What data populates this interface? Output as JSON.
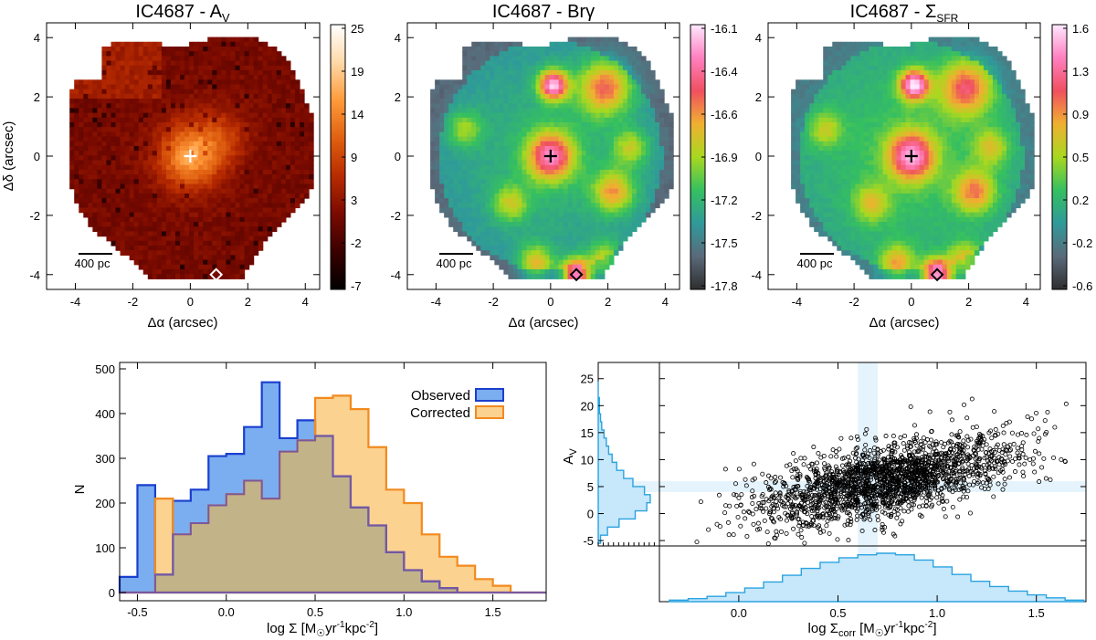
{
  "chart_data": [
    {
      "type": "heatmap",
      "title": "IC4687 - A",
      "title_sub": "V",
      "xlabel": "Δα (arcsec)",
      "ylabel": "Δδ (arcsec)",
      "xlim": [
        -5,
        4.5
      ],
      "ylim": [
        -4.5,
        4.5
      ],
      "xticks": [
        "-4",
        "-2",
        "0",
        "2",
        "4"
      ],
      "yticks": [
        "4",
        "2",
        "0",
        "-2",
        "-4"
      ],
      "colorbar_ticks": [
        "25",
        "19",
        "14",
        "9",
        "3",
        "-2",
        "-7"
      ],
      "scale_label": "400 pc",
      "colormap": [
        "#000000",
        "#3a0000",
        "#7a0a00",
        "#b82b00",
        "#e06010",
        "#ff9a3a",
        "#ffd9a8",
        "#ffffff"
      ],
      "markers": [
        {
          "kind": "cross",
          "x": 0,
          "y": 0,
          "color": "#ffffff"
        },
        {
          "kind": "diamond",
          "x": 0.9,
          "y": -4.0,
          "color": "#ffffff"
        }
      ]
    },
    {
      "type": "heatmap",
      "title": "IC4687 - Brγ",
      "xlabel": "Δα (arcsec)",
      "xlim": [
        -5,
        4.5
      ],
      "ylim": [
        -4.5,
        4.5
      ],
      "xticks": [
        "-4",
        "-2",
        "0",
        "2",
        "4"
      ],
      "yticks": [
        "4",
        "2",
        "0",
        "-2",
        "-4"
      ],
      "colorbar_ticks": [
        "-16.1",
        "-16.4",
        "-16.6",
        "-16.9",
        "-17.2",
        "-17.5",
        "-17.8"
      ],
      "scale_label": "400 pc",
      "colormap": [
        "#2e2e2e",
        "#5a6a7a",
        "#2f9a9a",
        "#35c060",
        "#a8d820",
        "#f0b030",
        "#f05060",
        "#ff80c0",
        "#ffe8ff"
      ],
      "markers": [
        {
          "kind": "cross",
          "x": 0,
          "y": 0,
          "color": "#000000"
        },
        {
          "kind": "diamond",
          "x": 0.9,
          "y": -4.0,
          "color": "#000000"
        }
      ]
    },
    {
      "type": "heatmap",
      "title": "IC4687 - Σ",
      "title_sub": "SFR",
      "xlabel": "Δα (arcsec)",
      "xlim": [
        -5,
        4.5
      ],
      "ylim": [
        -4.5,
        4.5
      ],
      "xticks": [
        "-4",
        "-2",
        "0",
        "2",
        "4"
      ],
      "yticks": [
        "4",
        "2",
        "0",
        "-2",
        "-4"
      ],
      "colorbar_ticks": [
        "1.6",
        "1.3",
        "0.9",
        "0.5",
        "0.2",
        "-0.2",
        "-0.6"
      ],
      "scale_label": "400 pc",
      "colormap": [
        "#2e2e2e",
        "#5a6a7a",
        "#2f9a9a",
        "#35c060",
        "#a8d820",
        "#f0b030",
        "#f05060",
        "#ff80c0",
        "#ffe8ff"
      ],
      "markers": [
        {
          "kind": "cross",
          "x": 0,
          "y": 0,
          "color": "#000000"
        },
        {
          "kind": "diamond",
          "x": 0.9,
          "y": -4.0,
          "color": "#000000"
        }
      ]
    },
    {
      "type": "bar",
      "style": "step-histogram",
      "xlabel": "log Σ [M",
      "xlabel_tail": "yr",
      "xlabel_end": "kpc",
      "ylabel": "N",
      "xlim": [
        -0.6,
        1.8
      ],
      "ylim": [
        0,
        500
      ],
      "xticks": [
        "-0.5",
        "0.0",
        "0.5",
        "1.0",
        "1.5"
      ],
      "yticks": [
        "500",
        "400",
        "300",
        "200",
        "100",
        "0"
      ],
      "bin_edges": [
        -0.6,
        -0.5,
        -0.4,
        -0.3,
        -0.2,
        -0.1,
        0.0,
        0.1,
        0.2,
        0.3,
        0.4,
        0.5,
        0.6,
        0.7,
        0.8,
        0.9,
        1.0,
        1.1,
        1.2,
        1.3,
        1.4,
        1.5,
        1.6,
        1.7,
        1.8
      ],
      "series": [
        {
          "name": "Observed",
          "color": "#1a3fcf",
          "fill": "#7aaef0",
          "values": [
            35,
            240,
            40,
            205,
            230,
            305,
            310,
            370,
            470,
            345,
            385,
            350,
            260,
            190,
            150,
            90,
            50,
            25,
            10,
            0,
            0,
            0,
            0,
            0
          ]
        },
        {
          "name": "Corrected",
          "color": "#f28a1e",
          "fill": "#fbd290",
          "values": [
            0,
            0,
            210,
            130,
            155,
            195,
            220,
            250,
            210,
            315,
            340,
            435,
            440,
            410,
            325,
            230,
            200,
            130,
            80,
            60,
            30,
            15,
            0,
            0
          ]
        }
      ]
    },
    {
      "type": "scatter",
      "xlabel": "log Σ",
      "xlabel_sub": "corr",
      "xlabel_rest": " [M",
      "xlabel_tail": "yr",
      "xlabel_end": "kpc",
      "ylabel": "A",
      "ylabel_sub": "V",
      "xlim": [
        -0.4,
        1.75
      ],
      "ylim": [
        -6,
        28
      ],
      "xticks": [
        "0.0",
        "0.5",
        "1.0",
        "1.5"
      ],
      "yticks": [
        "25",
        "20",
        "15",
        "10",
        "5",
        "0",
        "-5"
      ],
      "n_points": 2000,
      "trend": {
        "x_center": 0.75,
        "y_slope": 7.5,
        "y_intercept": 0.5,
        "y_scatter": 3.5
      },
      "band_x": [
        0.6,
        0.7
      ],
      "band_y": [
        4,
        6
      ],
      "hist_x": [
        2,
        4,
        7,
        12,
        18,
        26,
        35,
        44,
        52,
        58,
        62,
        64,
        62,
        55,
        46,
        36,
        27,
        20,
        14,
        9,
        5,
        2
      ],
      "hist_y": [
        2,
        8,
        18,
        32,
        42,
        45,
        40,
        30,
        22,
        16,
        12,
        9,
        7,
        5,
        3,
        2,
        1,
        1,
        0,
        0
      ],
      "color": "#000000",
      "hist_color": "#2aa3e0",
      "hist_fill": "#c7e7fa"
    }
  ]
}
